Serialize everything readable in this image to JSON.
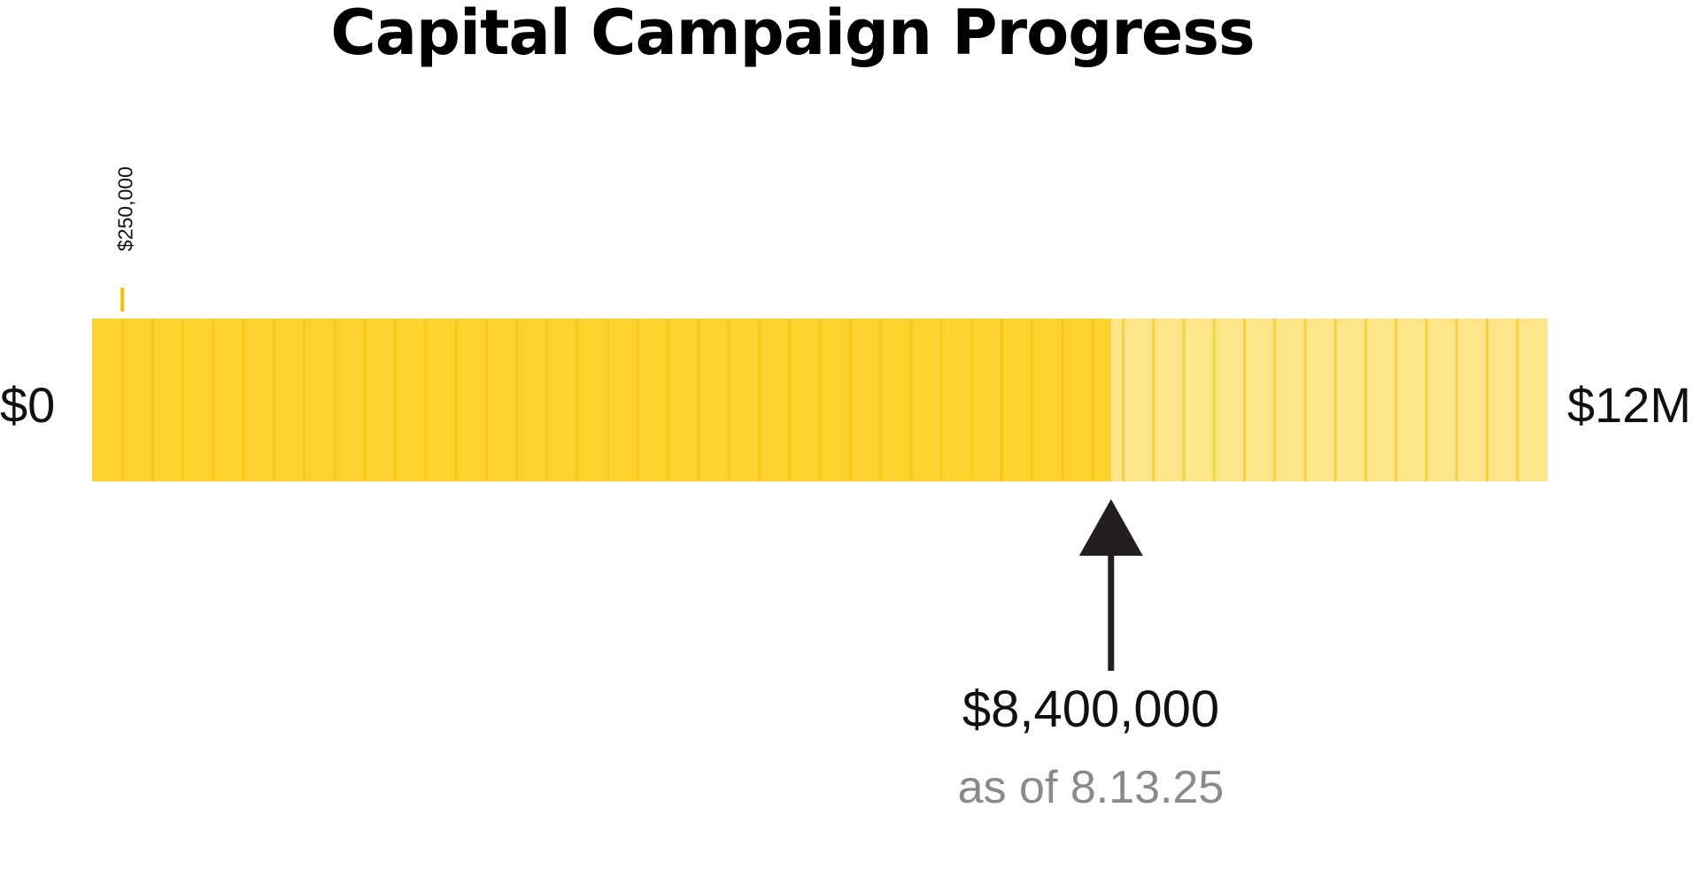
{
  "chart_data": {
    "type": "bar",
    "title": "Capital Campaign Progress",
    "goal": 12000000,
    "raised": 8400000,
    "increment": 250000,
    "start_label": "$0",
    "end_label": "$12M",
    "increment_label": "$250,000",
    "raised_label": "$8,400,000",
    "as_of_label": "as of 8.13.25"
  },
  "colors": {
    "filled": "#fcd22f",
    "unfilled": "#ffe58a",
    "segment_line": "#f5c200",
    "arrow": "#231f20",
    "as_of_text": "#8a8a8a"
  },
  "icons": {
    "marker": "up-arrow-icon"
  }
}
